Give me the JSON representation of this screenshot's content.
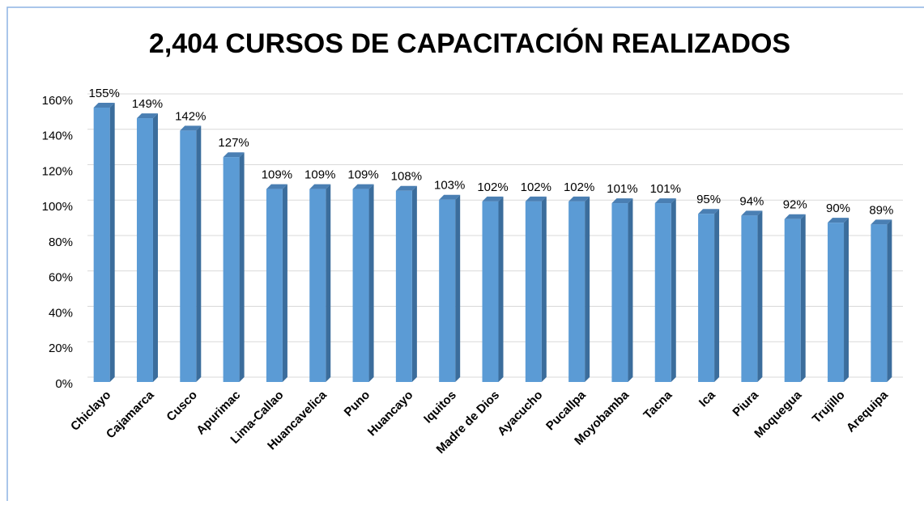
{
  "chart_data": {
    "type": "bar",
    "title": "2,404 CURSOS DE CAPACITACIÓN REALIZADOS",
    "categories": [
      "Chiclayo",
      "Cajamarca",
      "Cusco",
      "Apurimac",
      "Lima-Callao",
      "Huancavelica",
      "Puno",
      "Huancayo",
      "Iquitos",
      "Madre de Dios",
      "Ayacucho",
      "Pucallpa",
      "Moyobamba",
      "Tacna",
      "Ica",
      "Piura",
      "Moquegua",
      "Trujillo",
      "Arequipa"
    ],
    "values": [
      155,
      149,
      142,
      127,
      109,
      109,
      109,
      108,
      103,
      102,
      102,
      102,
      101,
      101,
      95,
      94,
      92,
      90,
      89
    ],
    "value_labels": [
      "155%",
      "149%",
      "142%",
      "127%",
      "109%",
      "109%",
      "109%",
      "108%",
      "103%",
      "102%",
      "102%",
      "102%",
      "101%",
      "101%",
      "95%",
      "94%",
      "92%",
      "90%",
      "89%"
    ],
    "color": "#5b9bd5",
    "ylim": [
      0,
      160
    ],
    "yticks": [
      {
        "value": 0,
        "label": "0%"
      },
      {
        "value": 20,
        "label": "20%"
      },
      {
        "value": 40,
        "label": "40%"
      },
      {
        "value": 60,
        "label": "60%"
      },
      {
        "value": 80,
        "label": "80%"
      },
      {
        "value": 100,
        "label": "100%"
      },
      {
        "value": 120,
        "label": "120%"
      },
      {
        "value": 140,
        "label": "140%"
      },
      {
        "value": 160,
        "label": "160%"
      }
    ],
    "grid": true
  }
}
